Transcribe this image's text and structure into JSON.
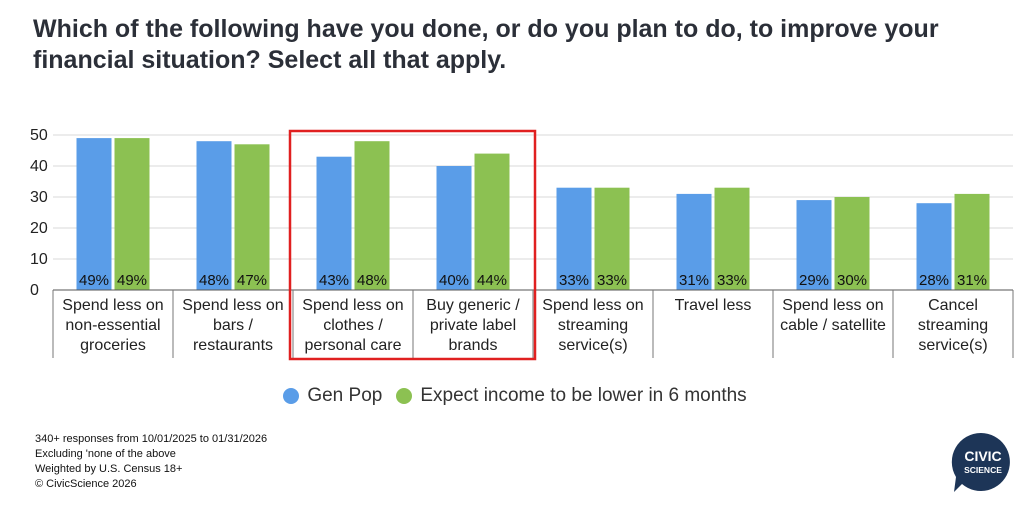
{
  "title": "Which of the following have you done, or do you plan to do, to improve your financial situation? Select all that apply.",
  "notes": [
    "340+ responses from 10/01/2025 to 01/31/2026",
    "Excluding 'none of the above",
    "Weighted by U.S. Census 18+",
    "© CivicScience 2026"
  ],
  "logo": {
    "line1": "CIVIC",
    "line2": "SCIENCE",
    "color": "#1d3557"
  },
  "highlight": {
    "categories": [
      2,
      3
    ],
    "color": "#e02020"
  },
  "chart_data": {
    "type": "bar",
    "categories": [
      [
        "Spend less on",
        "non-essential",
        "groceries"
      ],
      [
        "Spend less on",
        "bars /",
        "restaurants"
      ],
      [
        "Spend less on",
        "clothes /",
        "personal care"
      ],
      [
        "Buy generic /",
        "private label",
        "brands"
      ],
      [
        "Spend less on",
        "streaming",
        "service(s)"
      ],
      [
        "Travel less"
      ],
      [
        "Spend less on",
        "cable / satellite"
      ],
      [
        "Cancel",
        "streaming",
        "service(s)"
      ]
    ],
    "series": [
      {
        "name": "Gen Pop",
        "color": "#5a9de8",
        "values": [
          49,
          48,
          43,
          40,
          33,
          31,
          29,
          28
        ],
        "labels": [
          "49%",
          "48%",
          "43%",
          "40%",
          "33%",
          "31%",
          "29%",
          "28%"
        ]
      },
      {
        "name": "Expect income to be lower in 6 months",
        "color": "#8cc152",
        "values": [
          49,
          47,
          48,
          44,
          33,
          33,
          30,
          31
        ],
        "labels": [
          "49%",
          "47%",
          "48%",
          "44%",
          "33%",
          "33%",
          "30%",
          "31%"
        ]
      }
    ],
    "yticks": [
      0,
      10,
      20,
      30,
      40,
      50
    ],
    "ylim": [
      0,
      50
    ],
    "grid": true,
    "legend": "bottom-center"
  }
}
